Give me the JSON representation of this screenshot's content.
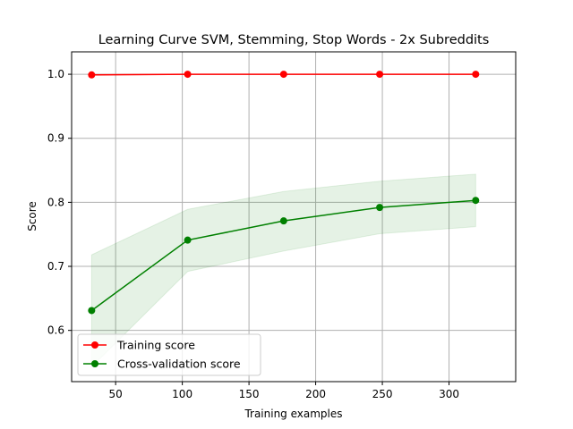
{
  "chart_data": {
    "type": "line",
    "title": "Learning Curve SVM, Stemming, Stop Words - 2x Subreddits",
    "xlabel": "Training examples",
    "ylabel": "Score",
    "xlim": [
      17,
      350
    ],
    "ylim": [
      0.52,
      1.035
    ],
    "xticks": [
      50,
      100,
      150,
      200,
      250,
      300
    ],
    "yticks": [
      0.6,
      0.7,
      0.8,
      0.9,
      1.0
    ],
    "grid": true,
    "legend_position": "lower left",
    "x": [
      32,
      104,
      176,
      248,
      320
    ],
    "series": [
      {
        "name": "Training score",
        "color": "#ff0000",
        "values": [
          0.999,
          1.0,
          1.0,
          1.0,
          1.0
        ],
        "band_lower": [
          0.998,
          1.0,
          1.0,
          1.0,
          1.0
        ],
        "band_upper": [
          1.0,
          1.0,
          1.0,
          1.0,
          1.0
        ]
      },
      {
        "name": "Cross-validation score",
        "color": "#008000",
        "values": [
          0.631,
          0.741,
          0.771,
          0.792,
          0.803
        ],
        "band_lower": [
          0.543,
          0.692,
          0.724,
          0.751,
          0.762
        ],
        "band_upper": [
          0.718,
          0.789,
          0.817,
          0.833,
          0.844
        ]
      }
    ]
  }
}
